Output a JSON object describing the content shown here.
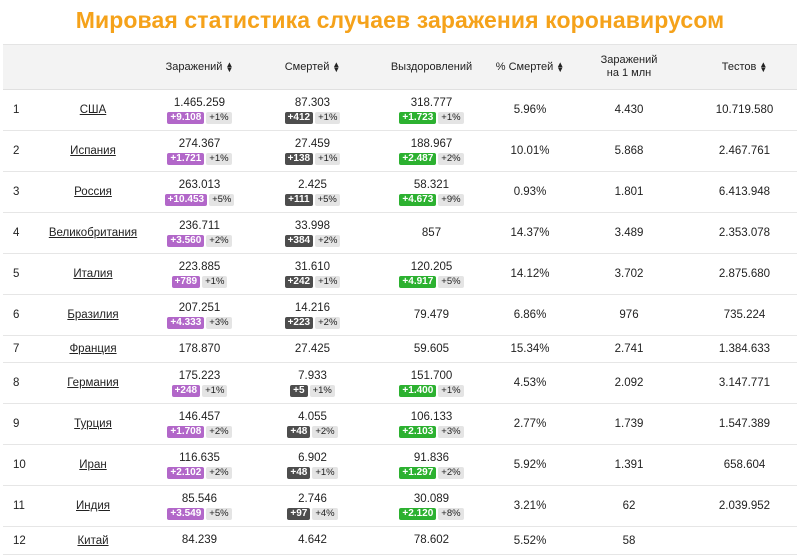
{
  "title": "Мировая статистика случаев заражения коронавирусом",
  "columns": {
    "infected": "Заражений",
    "deaths": "Смертей",
    "recovered": "Выздоровлений",
    "death_pct": "% Смертей",
    "per_million_l1": "Заражений",
    "per_million_l2": "на 1 млн",
    "tests": "Тестов"
  },
  "colors": {
    "title": "#f5a21a",
    "infected_badge": "#b267c9",
    "deaths_badge": "#4d4d4d",
    "recovered_badge": "#2cb130"
  },
  "rows": [
    {
      "rank": "1",
      "country": "США",
      "infected": "1.465.259",
      "inf_d": "+9.108",
      "inf_p": "+1%",
      "deaths": "87.303",
      "dead_d": "+412",
      "dead_p": "+1%",
      "recovered": "318.777",
      "rec_d": "+1.723",
      "rec_p": "+1%",
      "death_pct": "5.96%",
      "per_million": "4.430",
      "tests": "10.719.580"
    },
    {
      "rank": "2",
      "country": "Испания",
      "infected": "274.367",
      "inf_d": "+1.721",
      "inf_p": "+1%",
      "deaths": "27.459",
      "dead_d": "+138",
      "dead_p": "+1%",
      "recovered": "188.967",
      "rec_d": "+2.487",
      "rec_p": "+2%",
      "death_pct": "10.01%",
      "per_million": "5.868",
      "tests": "2.467.761"
    },
    {
      "rank": "3",
      "country": "Россия",
      "infected": "263.013",
      "inf_d": "+10.453",
      "inf_p": "+5%",
      "deaths": "2.425",
      "dead_d": "+111",
      "dead_p": "+5%",
      "recovered": "58.321",
      "rec_d": "+4.673",
      "rec_p": "+9%",
      "death_pct": "0.93%",
      "per_million": "1.801",
      "tests": "6.413.948"
    },
    {
      "rank": "4",
      "country": "Великобритания",
      "infected": "236.711",
      "inf_d": "+3.560",
      "inf_p": "+2%",
      "deaths": "33.998",
      "dead_d": "+384",
      "dead_p": "+2%",
      "recovered": "857",
      "rec_d": "",
      "rec_p": "",
      "death_pct": "14.37%",
      "per_million": "3.489",
      "tests": "2.353.078"
    },
    {
      "rank": "5",
      "country": "Италия",
      "infected": "223.885",
      "inf_d": "+789",
      "inf_p": "+1%",
      "deaths": "31.610",
      "dead_d": "+242",
      "dead_p": "+1%",
      "recovered": "120.205",
      "rec_d": "+4.917",
      "rec_p": "+5%",
      "death_pct": "14.12%",
      "per_million": "3.702",
      "tests": "2.875.680"
    },
    {
      "rank": "6",
      "country": "Бразилия",
      "infected": "207.251",
      "inf_d": "+4.333",
      "inf_p": "+3%",
      "deaths": "14.216",
      "dead_d": "+223",
      "dead_p": "+2%",
      "recovered": "79.479",
      "rec_d": "",
      "rec_p": "",
      "death_pct": "6.86%",
      "per_million": "976",
      "tests": "735.224"
    },
    {
      "rank": "7",
      "country": "Франция",
      "infected": "178.870",
      "inf_d": "",
      "inf_p": "",
      "deaths": "27.425",
      "dead_d": "",
      "dead_p": "",
      "recovered": "59.605",
      "rec_d": "",
      "rec_p": "",
      "death_pct": "15.34%",
      "per_million": "2.741",
      "tests": "1.384.633"
    },
    {
      "rank": "8",
      "country": "Германия",
      "infected": "175.223",
      "inf_d": "+248",
      "inf_p": "+1%",
      "deaths": "7.933",
      "dead_d": "+5",
      "dead_p": "+1%",
      "recovered": "151.700",
      "rec_d": "+1.400",
      "rec_p": "+1%",
      "death_pct": "4.53%",
      "per_million": "2.092",
      "tests": "3.147.771"
    },
    {
      "rank": "9",
      "country": "Турция",
      "infected": "146.457",
      "inf_d": "+1.708",
      "inf_p": "+2%",
      "deaths": "4.055",
      "dead_d": "+48",
      "dead_p": "+2%",
      "recovered": "106.133",
      "rec_d": "+2.103",
      "rec_p": "+3%",
      "death_pct": "2.77%",
      "per_million": "1.739",
      "tests": "1.547.389"
    },
    {
      "rank": "10",
      "country": "Иран",
      "infected": "116.635",
      "inf_d": "+2.102",
      "inf_p": "+2%",
      "deaths": "6.902",
      "dead_d": "+48",
      "dead_p": "+1%",
      "recovered": "91.836",
      "rec_d": "+1.297",
      "rec_p": "+2%",
      "death_pct": "5.92%",
      "per_million": "1.391",
      "tests": "658.604"
    },
    {
      "rank": "11",
      "country": "Индия",
      "infected": "85.546",
      "inf_d": "+3.549",
      "inf_p": "+5%",
      "deaths": "2.746",
      "dead_d": "+97",
      "dead_p": "+4%",
      "recovered": "30.089",
      "rec_d": "+2.120",
      "rec_p": "+8%",
      "death_pct": "3.21%",
      "per_million": "62",
      "tests": "2.039.952"
    },
    {
      "rank": "12",
      "country": "Китай",
      "infected": "84.239",
      "inf_d": "",
      "inf_p": "",
      "deaths": "4.642",
      "dead_d": "",
      "dead_p": "",
      "recovered": "78.602",
      "rec_d": "",
      "rec_p": "",
      "death_pct": "5.52%",
      "per_million": "58",
      "tests": ""
    }
  ]
}
